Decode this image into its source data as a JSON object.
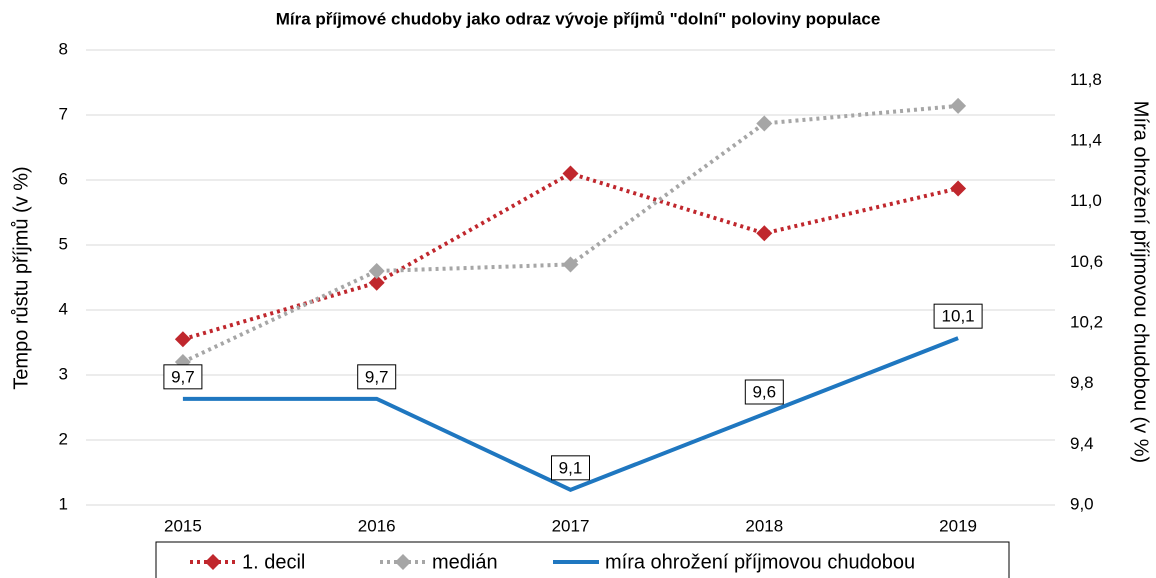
{
  "chart_data": {
    "type": "line",
    "title": "Míra příjmové chudoby jako odraz vývoje příjmů \"dolní\" poloviny populace",
    "y_label": "Tempo růstu příjmů (v %)",
    "y2_label": "Míra ohrožení příjmovou chudobou (v %)",
    "categories": [
      "2015",
      "2016",
      "2017",
      "2018",
      "2019"
    ],
    "ylim": [
      1,
      8
    ],
    "yticks": [
      1,
      2,
      3,
      4,
      5,
      6,
      7,
      8
    ],
    "y2lim": [
      9,
      12
    ],
    "y2ticks": [
      {
        "value": 9,
        "label": "9,0"
      },
      {
        "value": 9.4,
        "label": "9,4"
      },
      {
        "value": 9.8,
        "label": "9,8"
      },
      {
        "value": 10.2,
        "label": "10,2"
      },
      {
        "value": 10.6,
        "label": "10,6"
      },
      {
        "value": 11,
        "label": "11,0"
      },
      {
        "value": 11.4,
        "label": "11,4"
      },
      {
        "value": 11.8,
        "label": "11,8"
      }
    ],
    "grid": true,
    "legend": "bottom",
    "series": [
      {
        "name": "1. decil",
        "color": "#c0272d",
        "style": "dotted",
        "marker": "diamond",
        "values": [
          3.55,
          4.42,
          6.1,
          5.18,
          5.87
        ]
      },
      {
        "name": "medián",
        "color": "#a6a6a6",
        "style": "dotted",
        "marker": "diamond",
        "values": [
          3.2,
          4.6,
          4.7,
          6.87,
          7.14
        ]
      },
      {
        "name": "míra ohrožení příjmovou chudobou",
        "color": "#1f77c0",
        "style": "solid",
        "axis": "y2",
        "values": [
          9.7,
          9.7,
          9.1,
          9.6,
          10.1
        ],
        "value_labels": [
          "9,7",
          "9,7",
          "9,1",
          "9,6",
          "10,1"
        ]
      }
    ]
  }
}
